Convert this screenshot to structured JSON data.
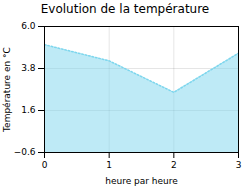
{
  "chart_data": {
    "type": "area",
    "title": "Evolution de la température",
    "xlabel": "heure par heure",
    "ylabel": "Température en °C",
    "x": [
      0,
      1,
      2,
      3
    ],
    "values": [
      5.05,
      4.2,
      2.55,
      4.6
    ],
    "xlim": [
      0,
      3
    ],
    "ylim": [
      -0.6,
      6.0
    ],
    "xticks": [
      0,
      1,
      2,
      3
    ],
    "yticks": [
      -0.6,
      1.6,
      3.8,
      {
        "value": 6.0,
        "label": "6.0"
      }
    ],
    "color": "#7dd6ed",
    "line_style": "dotted",
    "grid": true
  }
}
